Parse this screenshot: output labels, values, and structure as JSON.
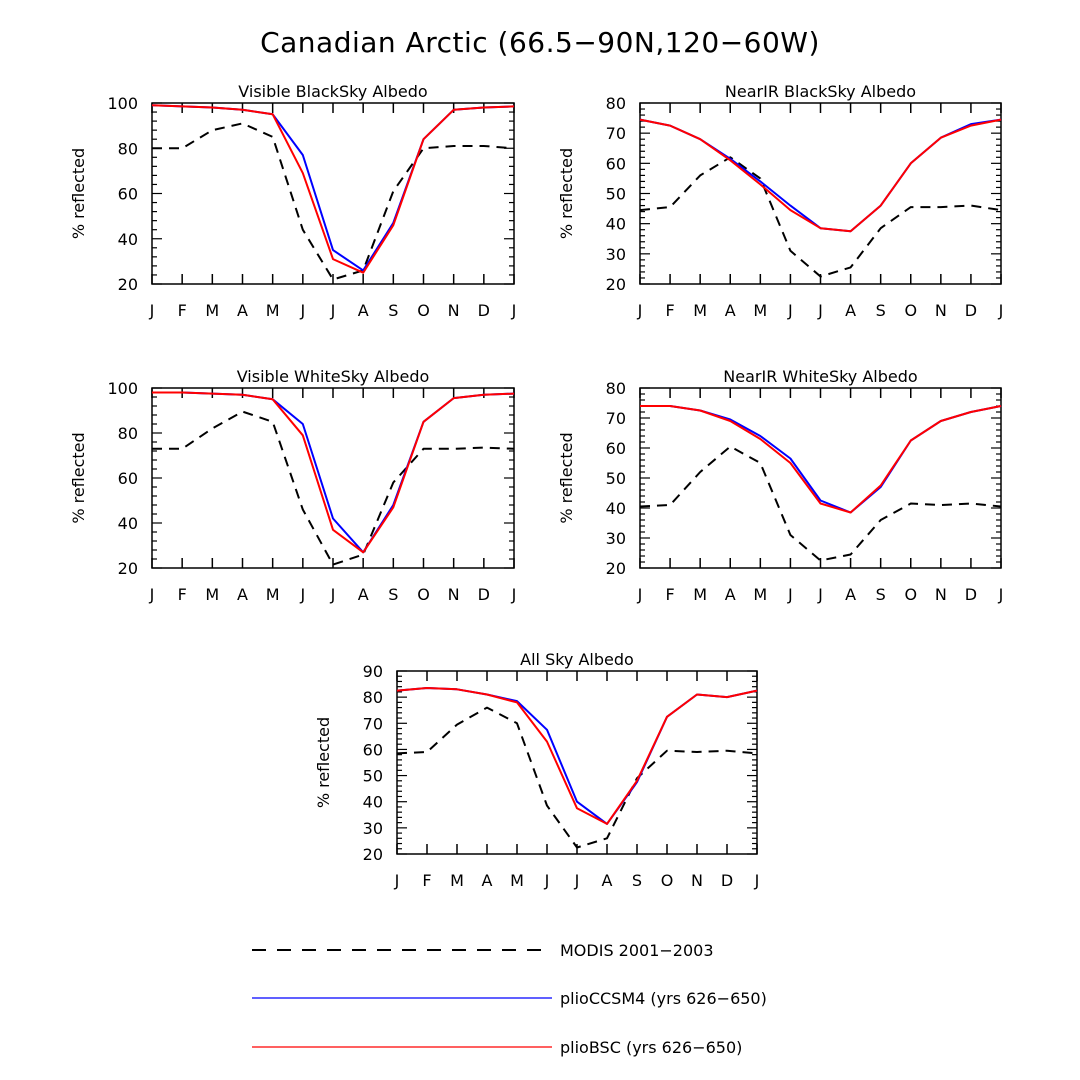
{
  "figure_title": "Canadian Arctic (66.5−90N,120−60W)",
  "colors": {
    "modis": "#000000",
    "ccsm4": "#0000ff",
    "bsc": "#ff0000"
  },
  "legend": {
    "modis": "MODIS 2001−2003",
    "ccsm4": "plioCCSM4 (yrs 626−650)",
    "bsc": "plioBSC (yrs 626−650)"
  },
  "chart_data": [
    {
      "type": "line",
      "title": "Visible BlackSky Albedo",
      "ylabel": "% reflected",
      "categories": [
        "J",
        "F",
        "M",
        "A",
        "M",
        "J",
        "J",
        "A",
        "S",
        "O",
        "N",
        "D",
        "J"
      ],
      "ylim": [
        20,
        100
      ],
      "yticks": [
        20,
        40,
        60,
        80,
        100
      ],
      "series": [
        {
          "name": "MODIS 2001−2003",
          "key": "modis",
          "values": [
            80,
            80,
            88,
            91,
            85,
            44,
            22,
            26,
            61,
            80,
            81,
            81,
            80
          ]
        },
        {
          "name": "plioCCSM4 (yrs 626−650)",
          "key": "ccsm4",
          "values": [
            99,
            98.5,
            98,
            97,
            95,
            77,
            35,
            26,
            47,
            84,
            97,
            98,
            98.5
          ]
        },
        {
          "name": "plioBSC (yrs 626−650)",
          "key": "bsc",
          "values": [
            99,
            98.5,
            98,
            97,
            95,
            69,
            31,
            25,
            46,
            84,
            97,
            98,
            98.5
          ]
        }
      ]
    },
    {
      "type": "line",
      "title": "NearIR BlackSky Albedo",
      "ylabel": "% reflected",
      "categories": [
        "J",
        "F",
        "M",
        "A",
        "M",
        "J",
        "J",
        "A",
        "S",
        "O",
        "N",
        "D",
        "J"
      ],
      "ylim": [
        20,
        80
      ],
      "yticks": [
        20,
        30,
        40,
        50,
        60,
        70,
        80
      ],
      "series": [
        {
          "name": "MODIS 2001−2003",
          "key": "modis",
          "values": [
            44.5,
            45.5,
            56,
            62,
            55,
            31,
            22.5,
            25.5,
            38.5,
            45.5,
            45.5,
            46,
            44.5
          ]
        },
        {
          "name": "plioCCSM4 (yrs 626−650)",
          "key": "ccsm4",
          "values": [
            74.5,
            72.5,
            68,
            61.5,
            54,
            46,
            38.5,
            37.5,
            46,
            60,
            68.5,
            73,
            74.5
          ]
        },
        {
          "name": "plioBSC (yrs 626−650)",
          "key": "bsc",
          "values": [
            74.5,
            72.5,
            68,
            61,
            53,
            44.5,
            38.5,
            37.5,
            46,
            60,
            68.5,
            72.5,
            74.5
          ]
        }
      ]
    },
    {
      "type": "line",
      "title": "Visible WhiteSky Albedo",
      "ylabel": "% reflected",
      "categories": [
        "J",
        "F",
        "M",
        "A",
        "M",
        "J",
        "J",
        "A",
        "S",
        "O",
        "N",
        "D",
        "J"
      ],
      "ylim": [
        20,
        100
      ],
      "yticks": [
        20,
        40,
        60,
        80,
        100
      ],
      "series": [
        {
          "name": "MODIS 2001−2003",
          "key": "modis",
          "values": [
            73,
            73,
            82,
            89.5,
            85,
            46,
            21.5,
            26,
            58,
            73,
            73,
            73.5,
            73
          ]
        },
        {
          "name": "plioCCSM4 (yrs 626−650)",
          "key": "ccsm4",
          "values": [
            98,
            98,
            97.5,
            97,
            95,
            84,
            42,
            27,
            48,
            85,
            95.5,
            97,
            97.5
          ]
        },
        {
          "name": "plioBSC (yrs 626−650)",
          "key": "bsc",
          "values": [
            98,
            98,
            97.5,
            97,
            95,
            79,
            37,
            27,
            47,
            85,
            95.5,
            97,
            97.5
          ]
        }
      ]
    },
    {
      "type": "line",
      "title": "NearIR WhiteSky Albedo",
      "ylabel": "% reflected",
      "categories": [
        "J",
        "F",
        "M",
        "A",
        "M",
        "J",
        "J",
        "A",
        "S",
        "O",
        "N",
        "D",
        "J"
      ],
      "ylim": [
        20,
        80
      ],
      "yticks": [
        20,
        30,
        40,
        50,
        60,
        70,
        80
      ],
      "series": [
        {
          "name": "MODIS 2001−2003",
          "key": "modis",
          "values": [
            40.5,
            41,
            52,
            60.5,
            55,
            31,
            22.5,
            24.5,
            36,
            41.5,
            41,
            41.5,
            40.5
          ]
        },
        {
          "name": "plioCCSM4 (yrs 626−650)",
          "key": "ccsm4",
          "values": [
            74,
            74,
            72.5,
            69.5,
            64,
            56.5,
            42.5,
            38.5,
            47,
            62.5,
            69,
            72,
            74
          ]
        },
        {
          "name": "plioBSC (yrs 626−650)",
          "key": "bsc",
          "values": [
            74,
            74,
            72.5,
            69,
            63,
            55,
            41.5,
            38.5,
            47.5,
            62.5,
            69,
            72,
            74
          ]
        }
      ]
    },
    {
      "type": "line",
      "title": "All Sky Albedo",
      "ylabel": "% reflected",
      "categories": [
        "J",
        "F",
        "M",
        "A",
        "M",
        "J",
        "J",
        "A",
        "S",
        "O",
        "N",
        "D",
        "J"
      ],
      "ylim": [
        20,
        90
      ],
      "yticks": [
        20,
        30,
        40,
        50,
        60,
        70,
        80,
        90
      ],
      "series": [
        {
          "name": "MODIS 2001−2003",
          "key": "modis",
          "values": [
            58.5,
            59,
            69.5,
            76,
            70,
            38.5,
            22.5,
            26,
            49,
            59.5,
            59,
            59.5,
            58.5
          ]
        },
        {
          "name": "plioCCSM4 (yrs 626−650)",
          "key": "ccsm4",
          "values": [
            82.5,
            83.5,
            83,
            81,
            78.5,
            67.5,
            40,
            31.5,
            47.5,
            72.5,
            81,
            80,
            82.5
          ]
        },
        {
          "name": "plioBSC (yrs 626−650)",
          "key": "bsc",
          "values": [
            82.5,
            83.5,
            83,
            81,
            78,
            63,
            37.5,
            31.5,
            48,
            72.5,
            81,
            80,
            82.5
          ]
        }
      ]
    }
  ]
}
